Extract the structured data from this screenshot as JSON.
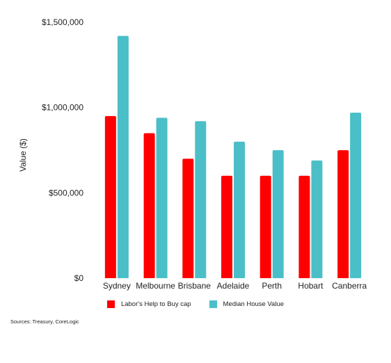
{
  "chart_data": {
    "type": "bar",
    "categories": [
      "Sydney",
      "Melbourne",
      "Brisbane",
      "Adelaide",
      "Perth",
      "Hobart",
      "Canberra"
    ],
    "series": [
      {
        "name": "Labor's Help to Buy cap",
        "color": "#ff0000",
        "values": [
          950000,
          850000,
          700000,
          600000,
          600000,
          600000,
          750000
        ]
      },
      {
        "name": "Median House Value",
        "color": "#4bbfc8",
        "values": [
          1420000,
          940000,
          920000,
          800000,
          750000,
          690000,
          970000
        ]
      }
    ],
    "ylabel": "Value ($)",
    "ylim": [
      0,
      1500000
    ],
    "yticks": [
      {
        "value": 0,
        "label": "$0"
      },
      {
        "value": 500000,
        "label": "$500,000"
      },
      {
        "value": 1000000,
        "label": "$1,000,000"
      },
      {
        "value": 1500000,
        "label": "$1,500,000"
      }
    ],
    "grid": false,
    "legend_position": "bottom"
  },
  "source_note": "Sources: Treasury, CoreLogic"
}
